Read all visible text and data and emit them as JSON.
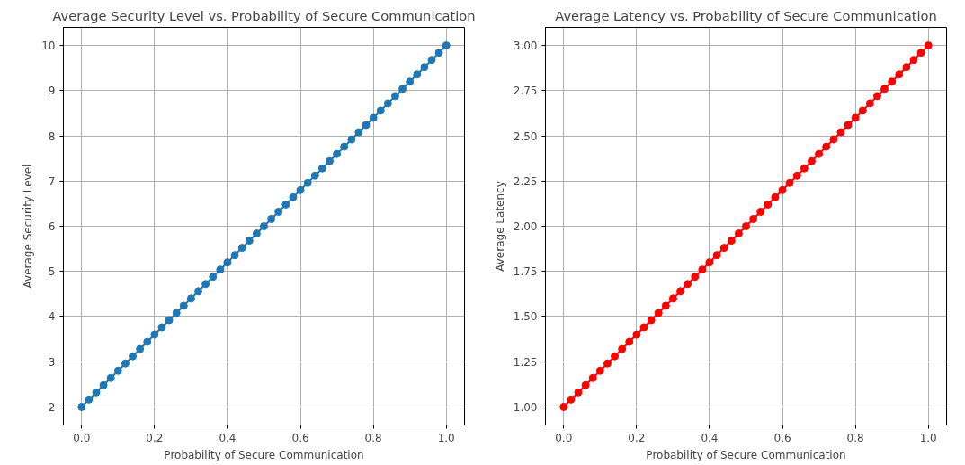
{
  "chart_data": [
    {
      "type": "line",
      "title": "Average Security Level vs. Probability of Secure Communication",
      "xlabel": "Probability of Secure Communication",
      "ylabel": "Average Security Level",
      "marker": "circle",
      "grid": true,
      "xlim": [
        -0.05,
        1.05
      ],
      "ylim": [
        1.6,
        10.4
      ],
      "xticks": [
        {
          "value": 0,
          "label": "0.0"
        },
        {
          "value": 0.2,
          "label": "0.2"
        },
        {
          "value": 0.4,
          "label": "0.4"
        },
        {
          "value": 0.6,
          "label": "0.6"
        },
        {
          "value": 0.8,
          "label": "0.8"
        },
        {
          "value": 1,
          "label": "1.0"
        }
      ],
      "yticks": [
        2,
        3,
        4,
        5,
        6,
        7,
        8,
        9,
        10
      ],
      "x": [
        0,
        0.02,
        0.04,
        0.06,
        0.08,
        0.1,
        0.12,
        0.14,
        0.16,
        0.18,
        0.2,
        0.22,
        0.24,
        0.26,
        0.28,
        0.3,
        0.32,
        0.34,
        0.36,
        0.38,
        0.4,
        0.42,
        0.44,
        0.46,
        0.48,
        0.5,
        0.52,
        0.54,
        0.56,
        0.58,
        0.6,
        0.62,
        0.64,
        0.66,
        0.68,
        0.7,
        0.72,
        0.74,
        0.76,
        0.78,
        0.8,
        0.82,
        0.84,
        0.86,
        0.88,
        0.9,
        0.92,
        0.94,
        0.96,
        0.98,
        1
      ],
      "series": [
        {
          "color": "#1f77b4",
          "values": [
            2,
            2.16,
            2.32,
            2.48,
            2.64,
            2.8,
            2.96,
            3.12,
            3.28,
            3.44,
            3.6,
            3.76,
            3.92,
            4.08,
            4.24,
            4.4,
            4.56,
            4.72,
            4.88,
            5.04,
            5.2,
            5.36,
            5.52,
            5.68,
            5.84,
            6,
            6.16,
            6.32,
            6.48,
            6.64,
            6.8,
            6.96,
            7.12,
            7.28,
            7.44,
            7.6,
            7.76,
            7.92,
            8.08,
            8.24,
            8.4,
            8.56,
            8.72,
            8.88,
            9.04,
            9.2,
            9.36,
            9.52,
            9.68,
            9.84,
            10
          ]
        }
      ]
    },
    {
      "type": "line",
      "title": "Average Latency vs. Probability of Secure Communication",
      "xlabel": "Probability of Secure Communication",
      "ylabel": "Average Latency",
      "marker": "circle",
      "grid": true,
      "xlim": [
        -0.05,
        1.05
      ],
      "ylim": [
        0.9,
        3.1
      ],
      "xticks": [
        {
          "value": 0,
          "label": "0.0"
        },
        {
          "value": 0.2,
          "label": "0.2"
        },
        {
          "value": 0.4,
          "label": "0.4"
        },
        {
          "value": 0.6,
          "label": "0.6"
        },
        {
          "value": 0.8,
          "label": "0.8"
        },
        {
          "value": 1,
          "label": "1.0"
        }
      ],
      "yticks": [
        {
          "value": 1,
          "label": "1.00"
        },
        {
          "value": 1.25,
          "label": "1.25"
        },
        {
          "value": 1.5,
          "label": "1.50"
        },
        {
          "value": 1.75,
          "label": "1.75"
        },
        {
          "value": 2,
          "label": "2.00"
        },
        {
          "value": 2.25,
          "label": "2.25"
        },
        {
          "value": 2.5,
          "label": "2.50"
        },
        {
          "value": 2.75,
          "label": "2.75"
        },
        {
          "value": 3,
          "label": "3.00"
        }
      ],
      "x": [
        0,
        0.02,
        0.04,
        0.06,
        0.08,
        0.1,
        0.12,
        0.14,
        0.16,
        0.18,
        0.2,
        0.22,
        0.24,
        0.26,
        0.28,
        0.3,
        0.32,
        0.34,
        0.36,
        0.38,
        0.4,
        0.42,
        0.44,
        0.46,
        0.48,
        0.5,
        0.52,
        0.54,
        0.56,
        0.58,
        0.6,
        0.62,
        0.64,
        0.66,
        0.68,
        0.7,
        0.72,
        0.74,
        0.76,
        0.78,
        0.8,
        0.82,
        0.84,
        0.86,
        0.88,
        0.9,
        0.92,
        0.94,
        0.96,
        0.98,
        1
      ],
      "series": [
        {
          "color": "#ff0000",
          "values": [
            1,
            1.04,
            1.08,
            1.12,
            1.16,
            1.2,
            1.24,
            1.28,
            1.32,
            1.36,
            1.4,
            1.44,
            1.48,
            1.52,
            1.56,
            1.6,
            1.64,
            1.68,
            1.72,
            1.76,
            1.8,
            1.84,
            1.88,
            1.92,
            1.96,
            2,
            2.04,
            2.08,
            2.12,
            2.16,
            2.2,
            2.24,
            2.28,
            2.32,
            2.36,
            2.4,
            2.44,
            2.48,
            2.52,
            2.56,
            2.6,
            2.64,
            2.68,
            2.72,
            2.76,
            2.8,
            2.84,
            2.88,
            2.92,
            2.96,
            3
          ]
        }
      ]
    }
  ]
}
